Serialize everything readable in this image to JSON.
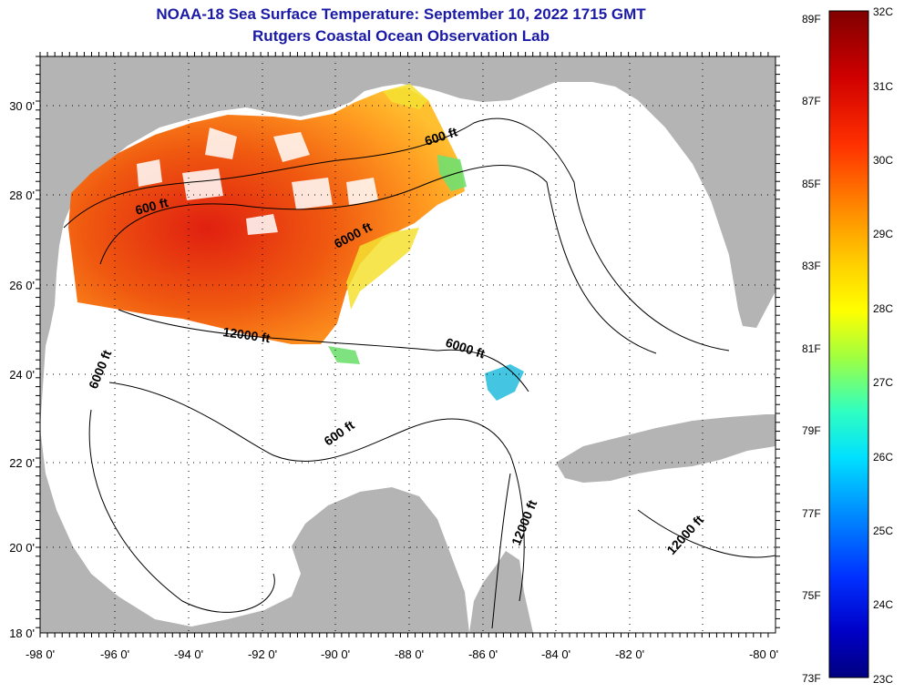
{
  "title": "NOAA-18 Sea Surface Temperature:  September 10, 2022 1715 GMT",
  "subtitle": "Rutgers Coastal Ocean Observation Lab",
  "lon_ticks": [
    "-98 0'",
    "-96 0'",
    "-94 0'",
    "-92 0'",
    "-90 0'",
    "-88 0'",
    "-86 0'",
    "-84 0'",
    "-82 0'",
    "-80 0'"
  ],
  "lat_ticks": [
    "30 0'",
    "28 0'",
    "26 0'",
    "24 0'",
    "22 0'",
    "20 0'",
    "18 0'"
  ],
  "contour_labels": [
    "600 ft",
    "600 ft",
    "600 ft",
    "6000 ft",
    "6000 ft",
    "6000 ft",
    "12000 ft",
    "12000 ft",
    "12000 ft"
  ],
  "colorbar": {
    "celsius": [
      "32C",
      "31C",
      "30C",
      "29C",
      "28C",
      "27C",
      "26C",
      "25C",
      "24C",
      "23C"
    ],
    "fahrenheit": [
      "89F",
      "87F",
      "85F",
      "83F",
      "81F",
      "79F",
      "77F",
      "75F",
      "73F"
    ]
  },
  "colors": {
    "land": "#b4b4b4",
    "water": "#ffffff",
    "title": "#1a1aa6"
  }
}
